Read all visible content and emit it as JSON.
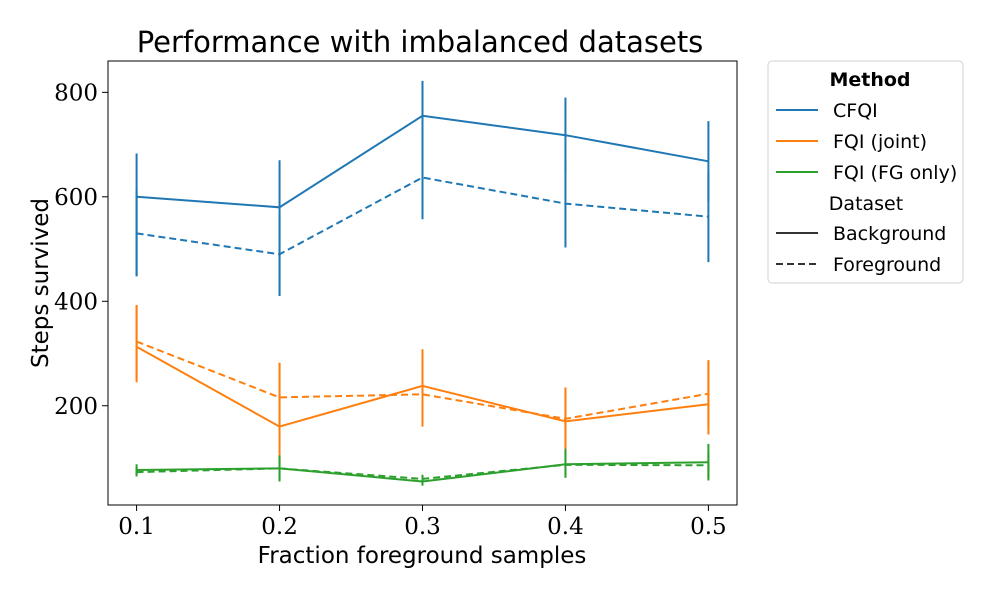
{
  "chart_data": {
    "type": "line",
    "title": "Performance with imbalanced datasets",
    "xlabel": "Fraction foreground samples",
    "ylabel": "Steps survived",
    "x": [
      0.1,
      0.2,
      0.3,
      0.4,
      0.5
    ],
    "x_tick_labels": [
      "0.1",
      "0.2",
      "0.3",
      "0.4",
      "0.5"
    ],
    "xlim": [
      0.08,
      0.52
    ],
    "ylim": [
      10,
      860
    ],
    "y_ticks": [
      200,
      400,
      600,
      800
    ],
    "y_tick_labels": [
      "200",
      "400",
      "600",
      "800"
    ],
    "grid": false,
    "legend": {
      "placement": "outside-right",
      "method_header": "Method",
      "dataset_header": "Dataset",
      "methods": [
        {
          "name": "CFQI",
          "color": "#1f77b4"
        },
        {
          "name": "FQI (joint)",
          "color": "#ff7f0e"
        },
        {
          "name": "FQI (FG only)",
          "color": "#2ca02c"
        }
      ],
      "datasets": [
        {
          "name": "Background",
          "dash": "solid"
        },
        {
          "name": "Foreground",
          "dash": "dashed"
        }
      ]
    },
    "series": [
      {
        "method": "CFQI",
        "dataset": "Background",
        "color": "#1f77b4",
        "dash": "solid",
        "values": [
          600,
          580,
          755,
          718,
          668
        ],
        "err_low": [
          448,
          410,
          690,
          645,
          590
        ],
        "err_high": [
          683,
          670,
          822,
          790,
          745
        ]
      },
      {
        "method": "CFQI",
        "dataset": "Foreground",
        "color": "#1f77b4",
        "dash": "dashed",
        "values": [
          530,
          490,
          637,
          587,
          562
        ],
        "err_low": [
          448,
          410,
          557,
          503,
          475
        ],
        "err_high": [
          612,
          568,
          716,
          670,
          648
        ]
      },
      {
        "method": "FQI (joint)",
        "dataset": "Background",
        "color": "#ff7f0e",
        "dash": "solid",
        "values": [
          313,
          160,
          238,
          170,
          203
        ],
        "err_low": [
          245,
          95,
          170,
          108,
          145
        ],
        "err_high": [
          393,
          282,
          308,
          235,
          287
        ]
      },
      {
        "method": "FQI (joint)",
        "dataset": "Foreground",
        "color": "#ff7f0e",
        "dash": "dashed",
        "values": [
          323,
          216,
          222,
          175,
          223
        ],
        "err_low": [
          250,
          160,
          160,
          120,
          160
        ],
        "err_high": [
          393,
          282,
          308,
          235,
          287
        ]
      },
      {
        "method": "FQI (FG only)",
        "dataset": "Background",
        "color": "#2ca02c",
        "dash": "solid",
        "values": [
          77,
          80,
          55,
          88,
          92
        ],
        "err_low": [
          65,
          55,
          47,
          62,
          57
        ],
        "err_high": [
          88,
          105,
          65,
          118,
          127
        ]
      },
      {
        "method": "FQI (FG only)",
        "dataset": "Foreground",
        "color": "#2ca02c",
        "dash": "dashed",
        "values": [
          73,
          80,
          60,
          87,
          86
        ],
        "err_low": [
          65,
          58,
          52,
          65,
          62
        ],
        "err_high": [
          83,
          100,
          68,
          110,
          110
        ]
      }
    ]
  }
}
